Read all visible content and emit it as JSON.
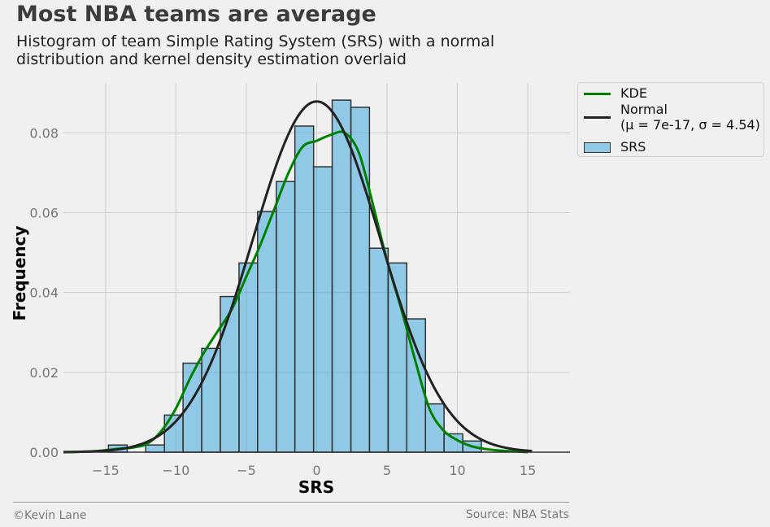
{
  "chart_data": {
    "type": "bar",
    "title": "Most NBA teams are average",
    "subtitle": "Histogram of team Simple Rating System (SRS) with a normal distribution and kernel density estimation overlaid",
    "xlabel": "SRS",
    "ylabel": "Frequency",
    "xlim": [
      -18,
      18
    ],
    "ylim": [
      0,
      0.0925
    ],
    "xticks": [
      -15,
      -10,
      -5,
      0,
      5,
      10,
      15
    ],
    "xtick_labels": [
      "−15",
      "−10",
      "−5",
      "0",
      "5",
      "10",
      "15"
    ],
    "yticks": [
      0,
      0.02,
      0.04,
      0.06,
      0.08
    ],
    "ytick_labels": [
      "0.00",
      "0.02",
      "0.04",
      "0.06",
      "0.08"
    ],
    "grid": true,
    "legend_position": "outside-top-right",
    "bin_edges": [
      -14.8,
      -13.47,
      -12.15,
      -10.82,
      -9.5,
      -8.17,
      -6.85,
      -5.52,
      -4.2,
      -2.87,
      -1.55,
      -0.22,
      1.1,
      2.43,
      3.75,
      5.08,
      6.4,
      7.73,
      9.05,
      10.38,
      11.7
    ],
    "histogram": {
      "name": "SRS",
      "values": [
        0.0018,
        0,
        0.0018,
        0.0093,
        0.0223,
        0.026,
        0.039,
        0.0474,
        0.0603,
        0.0678,
        0.0817,
        0.0715,
        0.0882,
        0.0864,
        0.0511,
        0.0474,
        0.0334,
        0.0121,
        0.0046,
        0.0028
      ]
    },
    "kde": {
      "name": "KDE",
      "x": [
        -18,
        -16,
        -15,
        -14,
        -13,
        -12,
        -11,
        -10,
        -9,
        -8,
        -7,
        -6,
        -5,
        -4,
        -3,
        -2,
        -1,
        0,
        1,
        2,
        3,
        4,
        5,
        6,
        7,
        8,
        9,
        10,
        11,
        12,
        13,
        14,
        15
      ],
      "y": [
        0,
        0.0002,
        0.0005,
        0.0009,
        0.0012,
        0.0022,
        0.0055,
        0.011,
        0.0185,
        0.025,
        0.0305,
        0.036,
        0.044,
        0.052,
        0.061,
        0.07,
        0.0765,
        0.078,
        0.0795,
        0.08,
        0.075,
        0.062,
        0.048,
        0.036,
        0.023,
        0.011,
        0.0055,
        0.003,
        0.0015,
        0.0008,
        0.0004,
        0.0002,
        0
      ]
    },
    "normal": {
      "name": "Normal",
      "legend_line2": "(μ = 7e-17, σ = 4.54)",
      "mu": 7e-17,
      "sigma": 4.54,
      "x_range": [
        -18,
        15.3
      ]
    },
    "colors": {
      "bar_fill": "#30a2da",
      "bar_edge": "#333333",
      "kde": "#008000",
      "normal": "#222222",
      "grid": "#cbcbcb",
      "tick_label": "#777777"
    }
  },
  "footer": {
    "credit": "©Kevin Lane",
    "source": "Source: NBA Stats"
  }
}
